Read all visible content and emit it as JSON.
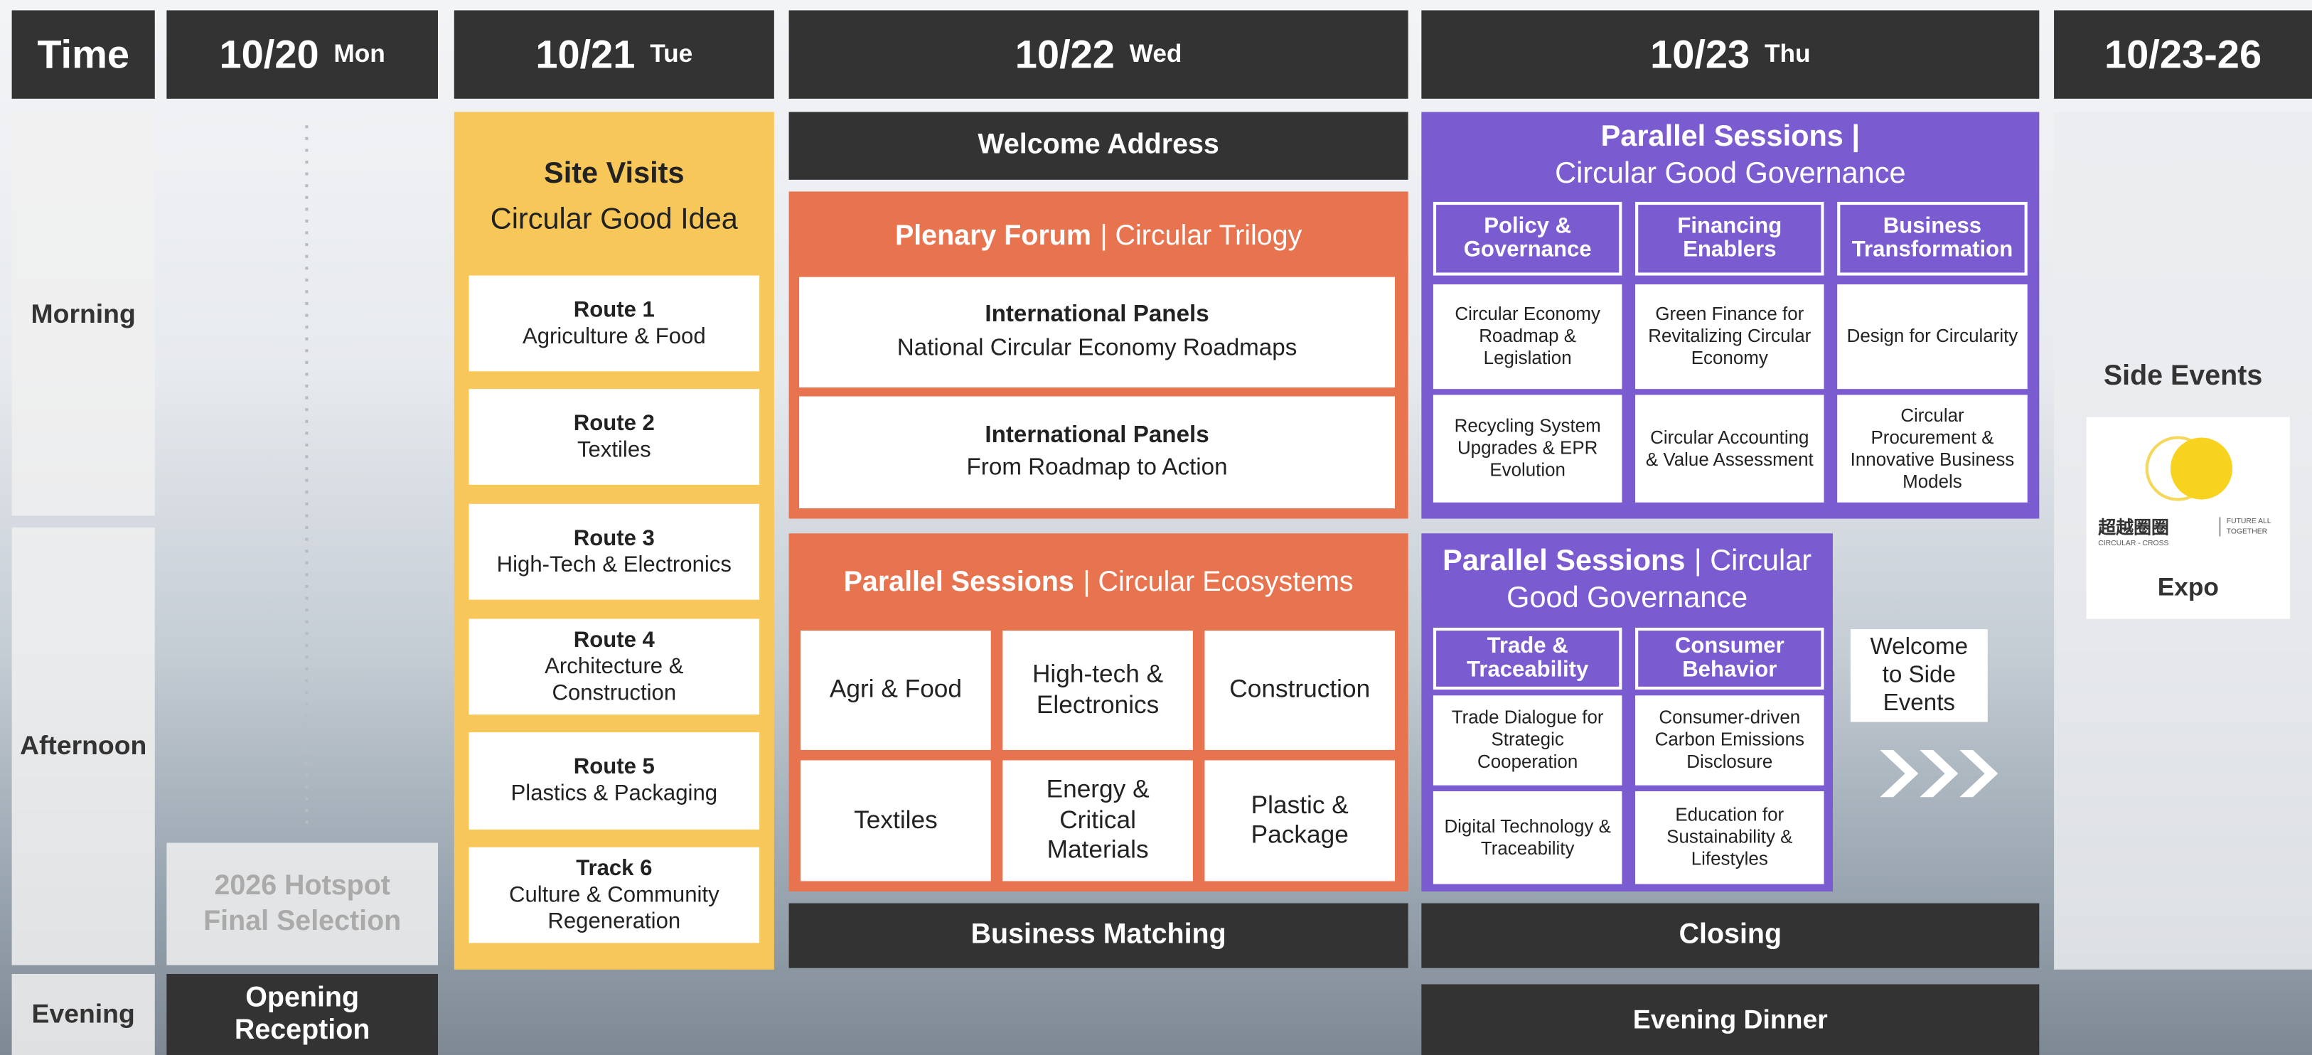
{
  "header": {
    "time": "Time",
    "days": [
      {
        "date": "10/20",
        "day": "Mon"
      },
      {
        "date": "10/21",
        "day": "Tue"
      },
      {
        "date": "10/22",
        "day": "Wed"
      },
      {
        "date": "10/23",
        "day": "Thu"
      },
      {
        "date": "10/23-26"
      }
    ]
  },
  "periods": [
    "Morning",
    "Afternoon",
    "Evening"
  ],
  "mon": {
    "hotspot": "2026 Hotspot Final Selection",
    "reception": "Opening Reception"
  },
  "tue": {
    "title": "Site Visits",
    "subtitle": "Circular Good Idea",
    "routes": [
      {
        "name": "Route 1",
        "topic": "Agriculture & Food"
      },
      {
        "name": "Route 2",
        "topic": "Textiles"
      },
      {
        "name": "Route 3",
        "topic": "High-Tech & Electronics"
      },
      {
        "name": "Route 4",
        "topic": "Architecture & Construction"
      },
      {
        "name": "Route 5",
        "topic": "Plastics & Packaging"
      },
      {
        "name": "Track 6",
        "topic": "Culture & Community Regeneration"
      }
    ]
  },
  "wed": {
    "welcome": "Welcome Address",
    "plenary": {
      "title": "Plenary Forum",
      "subtitle": "| Circular Trilogy",
      "panels": [
        {
          "name": "International Panels",
          "topic": "National Circular Economy Roadmaps"
        },
        {
          "name": "International Panels",
          "topic": "From Roadmap to Action"
        }
      ]
    },
    "parallel": {
      "title": "Parallel Sessions",
      "subtitle": "| Circular Ecosystems",
      "topics": [
        "Agri & Food",
        "High-tech & Electronics",
        "Construction",
        "Textiles",
        "Energy & Critical Materials",
        "Plastic & Package"
      ]
    },
    "matching": "Business Matching"
  },
  "thu": {
    "morning": {
      "title": "Parallel Sessions |",
      "subtitle": "Circular Good Governance",
      "tracks": [
        {
          "name": "Policy & Governance",
          "topics": [
            "Circular Economy Roadmap & Legislation",
            "Recycling System Upgrades & EPR Evolution"
          ]
        },
        {
          "name": "Financing Enablers",
          "topics": [
            "Green Finance for Revitalizing Circular Economy",
            "Circular Accounting & Value Assessment"
          ]
        },
        {
          "name": "Business Transformation",
          "topics": [
            "Design for Circularity",
            "Circular Procurement & Innovative Business Models"
          ]
        }
      ]
    },
    "afternoon": {
      "title": "Parallel Sessions",
      "subtitle": "| Circular Good Governance",
      "tracks": [
        {
          "name": "Trade & Traceability",
          "topics": [
            "Trade Dialogue for Strategic Cooperation",
            "Digital Technology & Traceability"
          ]
        },
        {
          "name": "Consumer Behavior",
          "topics": [
            "Consumer-driven Carbon Emissions Disclosure",
            "Education for Sustainability & Lifestyles"
          ]
        }
      ]
    },
    "side_welcome": "Welcome to Side Events",
    "closing": "Closing",
    "dinner": "Evening Dinner"
  },
  "side": {
    "title": "Side Events",
    "logo_name": "超越圈圈",
    "logo_sub": "CIRCULAR - CROSS",
    "logo_tagline": "FUTURE ALL TOGETHER",
    "expo": "Expo"
  }
}
